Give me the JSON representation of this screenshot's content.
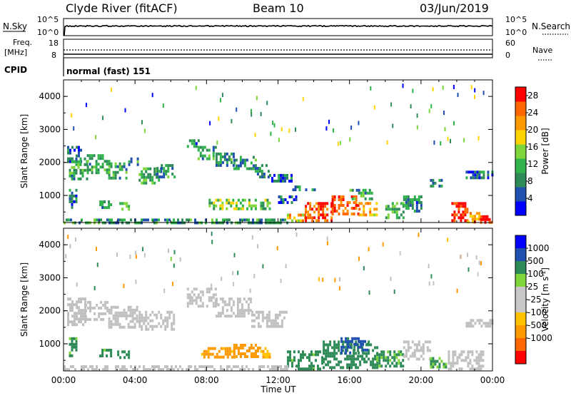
{
  "header": {
    "title": "Clyde River (fitACF)",
    "beam": "Beam 10",
    "date": "03/Jun/2019"
  },
  "status": {
    "nsky_label": "N.Sky",
    "nsearch_label": "N.Search",
    "left_ticks": [
      "10^5",
      "10^0"
    ],
    "right_ticks": [
      "10^5",
      "10^0"
    ],
    "freq_label_1": "Freq.",
    "freq_label_2": "[MHz]",
    "freq_ticks": [
      "18",
      "8"
    ],
    "nave_label": "Nave",
    "nave_ticks": [
      "60",
      "0"
    ],
    "cpid_label": "CPID",
    "cpid_text": "normal (fast) 151"
  },
  "colors": {
    "power": [
      "#0000ff",
      "#1f4faf",
      "#2e8b57",
      "#2fb34a",
      "#7fd63a",
      "#ffd400",
      "#ff9900",
      "#ff6600",
      "#ff0000"
    ],
    "velocity": [
      "#ff0000",
      "#ff6600",
      "#ff9900",
      "#ffc000",
      "#c8c8c8",
      "#c8c8c8",
      "#7fd63a",
      "#2e8b57",
      "#1f4faf",
      "#0000ff"
    ],
    "ground_scatter": "#c0c0c0"
  },
  "chart_data": [
    {
      "type": "heatmap",
      "name": "power-panel",
      "ylabel": "Slant Range [km]",
      "xlabel": "",
      "x_range_hours": [
        0,
        24
      ],
      "y_range_km": [
        180,
        4500
      ],
      "y_ticks": [
        "1000",
        "2000",
        "3000",
        "4000"
      ],
      "x_ticks": [
        "00:00",
        "04:00",
        "08:00",
        "12:00",
        "16:00",
        "20:00",
        "00:00"
      ],
      "colorbar": {
        "label": "Power [dB]",
        "tick_labels": [
          "4",
          "8",
          "12",
          "16",
          "20",
          "24",
          "28"
        ],
        "range": [
          0,
          30
        ]
      },
      "regions": [
        {
          "t0": 0.2,
          "t1": 1.0,
          "r0": 2050,
          "r1": 2500,
          "v": 6
        },
        {
          "t0": 0.3,
          "t1": 1.3,
          "r0": 1500,
          "r1": 2150,
          "v": 10
        },
        {
          "t0": 1.3,
          "t1": 2.5,
          "r0": 1700,
          "r1": 2250,
          "v": 10
        },
        {
          "t0": 2.5,
          "t1": 3.5,
          "r0": 1500,
          "r1": 2000,
          "v": 10
        },
        {
          "t0": 3.5,
          "t1": 4.2,
          "r0": 1900,
          "r1": 2150,
          "v": 9
        },
        {
          "t0": 4.2,
          "t1": 5.4,
          "r0": 1400,
          "r1": 1850,
          "v": 11
        },
        {
          "t0": 5.2,
          "t1": 6.2,
          "r0": 1550,
          "r1": 1950,
          "v": 9
        },
        {
          "t0": 6.9,
          "t1": 7.5,
          "r0": 2450,
          "r1": 2700,
          "v": 7
        },
        {
          "t0": 7.5,
          "t1": 8.5,
          "r0": 2100,
          "r1": 2500,
          "v": 9
        },
        {
          "t0": 8.5,
          "t1": 9.5,
          "r0": 1900,
          "r1": 2300,
          "v": 9
        },
        {
          "t0": 9.5,
          "t1": 10.7,
          "r0": 1800,
          "r1": 2200,
          "v": 9
        },
        {
          "t0": 10.7,
          "t1": 11.5,
          "r0": 1600,
          "r1": 1950,
          "v": 8
        },
        {
          "t0": 11.5,
          "t1": 12.8,
          "r0": 1450,
          "r1": 1650,
          "v": 6
        },
        {
          "t0": 0.3,
          "t1": 0.7,
          "r0": 600,
          "r1": 1200,
          "v": 7
        },
        {
          "t0": 2.0,
          "t1": 2.6,
          "r0": 600,
          "r1": 850,
          "v": 10
        },
        {
          "t0": 3.0,
          "t1": 3.6,
          "r0": 600,
          "r1": 800,
          "v": 12
        },
        {
          "t0": 8.0,
          "t1": 9.5,
          "r0": 600,
          "r1": 900,
          "v": 14
        },
        {
          "t0": 9.5,
          "t1": 10.7,
          "r0": 600,
          "r1": 900,
          "v": 14
        },
        {
          "t0": 11.0,
          "t1": 11.5,
          "r0": 600,
          "r1": 900,
          "v": 12
        },
        {
          "t0": 12.0,
          "t1": 13.0,
          "r0": 800,
          "r1": 1000,
          "v": 6
        },
        {
          "t0": 12.5,
          "t1": 13.5,
          "r0": 200,
          "r1": 450,
          "v": 20
        },
        {
          "t0": 13.5,
          "t1": 15.0,
          "r0": 250,
          "r1": 800,
          "v": 26
        },
        {
          "t0": 15.0,
          "t1": 16.5,
          "r0": 400,
          "r1": 1000,
          "v": 26
        },
        {
          "t0": 16.5,
          "t1": 17.5,
          "r0": 400,
          "r1": 800,
          "v": 20
        },
        {
          "t0": 16.0,
          "t1": 17.3,
          "r0": 900,
          "r1": 1200,
          "v": 10
        },
        {
          "t0": 18.0,
          "t1": 19.0,
          "r0": 300,
          "r1": 800,
          "v": 12
        },
        {
          "t0": 19.0,
          "t1": 20.0,
          "r0": 500,
          "r1": 1000,
          "v": 8
        },
        {
          "t0": 20.5,
          "t1": 21.2,
          "r0": 1300,
          "r1": 1500,
          "v": 8
        },
        {
          "t0": 21.7,
          "t1": 22.6,
          "r0": 250,
          "r1": 800,
          "v": 29
        },
        {
          "t0": 22.6,
          "t1": 23.3,
          "r0": 200,
          "r1": 500,
          "v": 22
        },
        {
          "t0": 23.3,
          "t1": 24.0,
          "r0": 180,
          "r1": 400,
          "v": 29
        },
        {
          "t0": 22.5,
          "t1": 24.0,
          "r0": 1550,
          "r1": 1750,
          "v": 6
        },
        {
          "t0": 0.0,
          "t1": 12.5,
          "r0": 180,
          "r1": 300,
          "v": 9
        },
        {
          "t0": 12.8,
          "t1": 14.0,
          "r0": 1150,
          "r1": 1300,
          "v": 8
        }
      ]
    },
    {
      "type": "heatmap",
      "name": "velocity-panel",
      "ylabel": "Slant Range [km]",
      "xlabel": "Time UT",
      "x_range_hours": [
        0,
        24
      ],
      "y_range_km": [
        180,
        4500
      ],
      "y_ticks": [
        "1000",
        "2000",
        "3000",
        "4000"
      ],
      "x_ticks": [
        "00:00",
        "04:00",
        "08:00",
        "12:00",
        "16:00",
        "20:00",
        "00:00"
      ],
      "colorbar": {
        "label": "Velocity [m s",
        "label_sup": "-1",
        "label_end": "]",
        "tick_labels": [
          "1000",
          "500",
          "100",
          "25",
          "-25",
          "-100",
          "-500",
          "-1000"
        ],
        "range": [
          -1000,
          1000
        ]
      },
      "regions": [
        {
          "t0": 0.2,
          "t1": 1.2,
          "r0": 1550,
          "r1": 2400,
          "v": 0
        },
        {
          "t0": 1.2,
          "t1": 2.5,
          "r0": 1700,
          "r1": 2300,
          "v": 0
        },
        {
          "t0": 2.5,
          "t1": 4.2,
          "r0": 1500,
          "r1": 2150,
          "v": 0
        },
        {
          "t0": 4.2,
          "t1": 6.2,
          "r0": 1400,
          "r1": 2000,
          "v": 0
        },
        {
          "t0": 6.9,
          "t1": 8.5,
          "r0": 2150,
          "r1": 2700,
          "v": 0
        },
        {
          "t0": 8.5,
          "t1": 10.5,
          "r0": 1850,
          "r1": 2400,
          "v": 0
        },
        {
          "t0": 10.5,
          "t1": 12.5,
          "r0": 1500,
          "r1": 2000,
          "v": 0
        },
        {
          "t0": 0.3,
          "t1": 0.7,
          "r0": 600,
          "r1": 1200,
          "v": 150
        },
        {
          "t0": 2.0,
          "t1": 2.6,
          "r0": 600,
          "r1": 850,
          "v": 150
        },
        {
          "t0": 3.0,
          "t1": 3.6,
          "r0": 600,
          "r1": 800,
          "v": 200
        },
        {
          "t0": 7.7,
          "t1": 9.5,
          "r0": 600,
          "r1": 900,
          "v": -150
        },
        {
          "t0": 9.5,
          "t1": 11.0,
          "r0": 600,
          "r1": 1000,
          "v": -200
        },
        {
          "t0": 11.0,
          "t1": 11.5,
          "r0": 600,
          "r1": 900,
          "v": -100
        },
        {
          "t0": 12.5,
          "t1": 14.5,
          "r0": 250,
          "r1": 800,
          "v": 150
        },
        {
          "t0": 14.5,
          "t1": 17.5,
          "r0": 300,
          "r1": 1100,
          "v": 200
        },
        {
          "t0": 15.5,
          "t1": 17.0,
          "r0": 700,
          "r1": 1200,
          "v": 700
        },
        {
          "t0": 17.5,
          "t1": 19.0,
          "r0": 300,
          "r1": 800,
          "v": 120
        },
        {
          "t0": 19.0,
          "t1": 20.5,
          "r0": 500,
          "r1": 1100,
          "v": 0
        },
        {
          "t0": 20.5,
          "t1": 21.5,
          "r0": 300,
          "r1": 600,
          "v": 100
        },
        {
          "t0": 21.5,
          "t1": 23.5,
          "r0": 200,
          "r1": 800,
          "v": 0
        },
        {
          "t0": 22.5,
          "t1": 24.0,
          "r0": 1550,
          "r1": 1750,
          "v": 0
        },
        {
          "t0": 0.0,
          "t1": 12.5,
          "r0": 180,
          "r1": 350,
          "v": 0
        }
      ]
    }
  ]
}
